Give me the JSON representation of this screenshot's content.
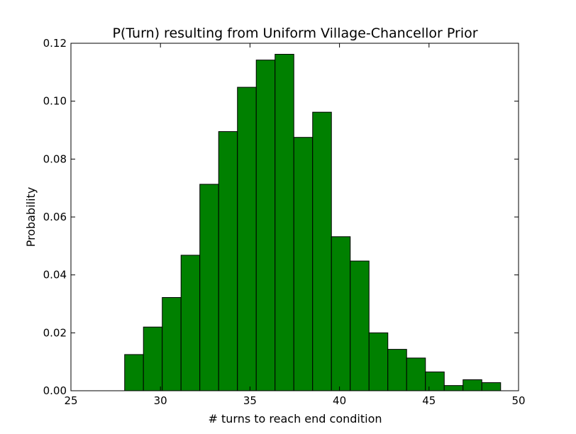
{
  "chart_data": {
    "type": "bar",
    "title": "P(Turn) resulting from Uniform Village-Chancellor Prior",
    "xlabel": "# turns to reach end condition",
    "ylabel": "Probability",
    "xlim": [
      25,
      50
    ],
    "ylim": [
      0,
      0.12
    ],
    "xticks": [
      "25",
      "30",
      "35",
      "40",
      "45",
      "50"
    ],
    "yticks": [
      "0.00",
      "0.02",
      "0.04",
      "0.06",
      "0.08",
      "0.10",
      "0.12"
    ],
    "bin_edges": [
      28,
      29.05,
      30.1,
      31.15,
      32.2,
      33.25,
      34.3,
      35.35,
      36.4,
      37.45,
      38.5,
      39.55,
      40.6,
      41.65,
      42.7,
      43.75,
      44.8,
      45.85,
      46.9,
      47.95,
      49
    ],
    "values": [
      0.0125,
      0.022,
      0.0322,
      0.0468,
      0.0713,
      0.0895,
      0.1048,
      0.1142,
      0.1162,
      0.0875,
      0.0962,
      0.0532,
      0.0448,
      0.02,
      0.0143,
      0.0113,
      0.0065,
      0.0018,
      0.0038,
      0.0028
    ],
    "grid": false,
    "colors": {
      "bar_fill": "#008000",
      "bar_edge": "#000000",
      "axes": "#000000"
    }
  }
}
